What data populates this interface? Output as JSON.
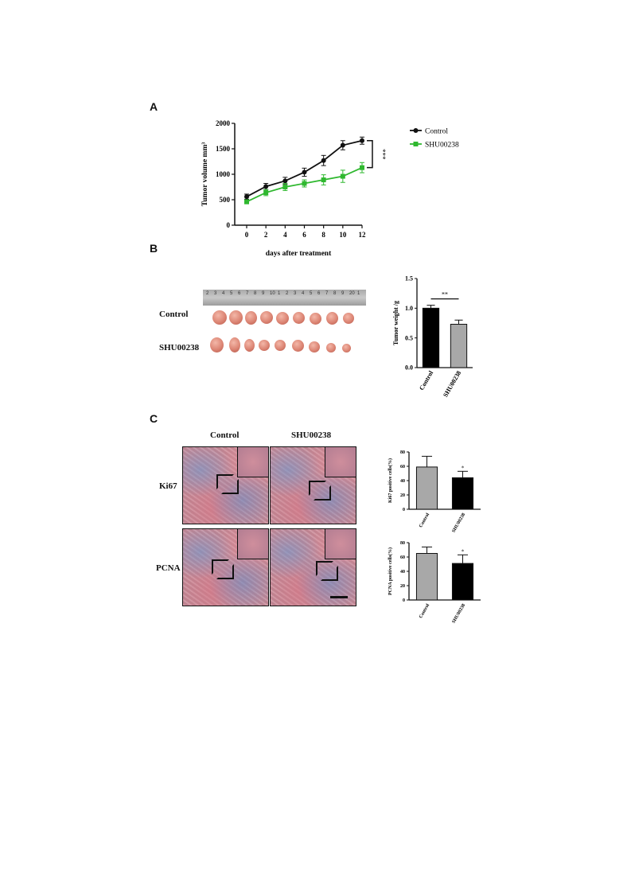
{
  "panels": {
    "a": "A",
    "b": "B",
    "c": "C"
  },
  "panel_b": {
    "row_labels": [
      "Control",
      "SHU00238"
    ],
    "ruler_ticks": [
      "2",
      "3",
      "4",
      "5",
      "6",
      "7",
      "8",
      "9",
      "10",
      "1",
      "2",
      "3",
      "4",
      "5",
      "6",
      "7",
      "8",
      "9",
      "20",
      "1"
    ]
  },
  "panel_c": {
    "col_labels": [
      "Control",
      "SHU00238"
    ],
    "row_labels": [
      "Ki67",
      "PCNA"
    ]
  },
  "chart_data": [
    {
      "type": "line",
      "xlabel": "days after treatment",
      "ylabel": "Tumor volume mm³",
      "x": [
        0,
        2,
        4,
        6,
        8,
        10,
        12
      ],
      "xticks": [
        "0",
        "2",
        "4",
        "6",
        "8",
        "10",
        "12"
      ],
      "yticks": [
        "0",
        "500",
        "1000",
        "1500",
        "2000"
      ],
      "ylim": [
        0,
        2000
      ],
      "legend_placement": "right",
      "significance": "***",
      "series": [
        {
          "name": "Control",
          "color": "#111111",
          "marker": "circle",
          "values": [
            560,
            760,
            870,
            1040,
            1270,
            1570,
            1660
          ],
          "errors": [
            50,
            60,
            70,
            80,
            100,
            90,
            70
          ]
        },
        {
          "name": "SHU00238",
          "color": "#2fb82f",
          "marker": "square",
          "values": [
            460,
            640,
            750,
            820,
            890,
            960,
            1130
          ],
          "errors": [
            40,
            60,
            70,
            70,
            100,
            120,
            100
          ]
        }
      ]
    },
    {
      "type": "bar",
      "categories": [
        "Control",
        "SHU00238"
      ],
      "values": [
        1.0,
        0.73
      ],
      "errors": [
        0.05,
        0.07
      ],
      "colors": [
        "#000000",
        "#a8a8a8"
      ],
      "ylabel": "Tumor weight /g",
      "yticks": [
        "0.0",
        "0.5",
        "1.0",
        "1.5"
      ],
      "ylim": [
        0,
        1.5
      ],
      "significance": "**"
    },
    {
      "type": "bar",
      "categories": [
        "Control",
        "SHU00238"
      ],
      "values": [
        59,
        44
      ],
      "errors": [
        15,
        9
      ],
      "colors": [
        "#a8a8a8",
        "#000000"
      ],
      "ylabel": "Ki67 positive cells(%)",
      "yticks": [
        "0",
        "20",
        "40",
        "60",
        "80"
      ],
      "ylim": [
        0,
        80
      ],
      "significance": "*"
    },
    {
      "type": "bar",
      "categories": [
        "Control",
        "SHU00238"
      ],
      "values": [
        65,
        51
      ],
      "errors": [
        9,
        12
      ],
      "colors": [
        "#a8a8a8",
        "#000000"
      ],
      "ylabel": "PCNA positive cells(%)",
      "yticks": [
        "0",
        "20",
        "40",
        "60",
        "80"
      ],
      "ylim": [
        0,
        80
      ],
      "significance": "*"
    }
  ]
}
